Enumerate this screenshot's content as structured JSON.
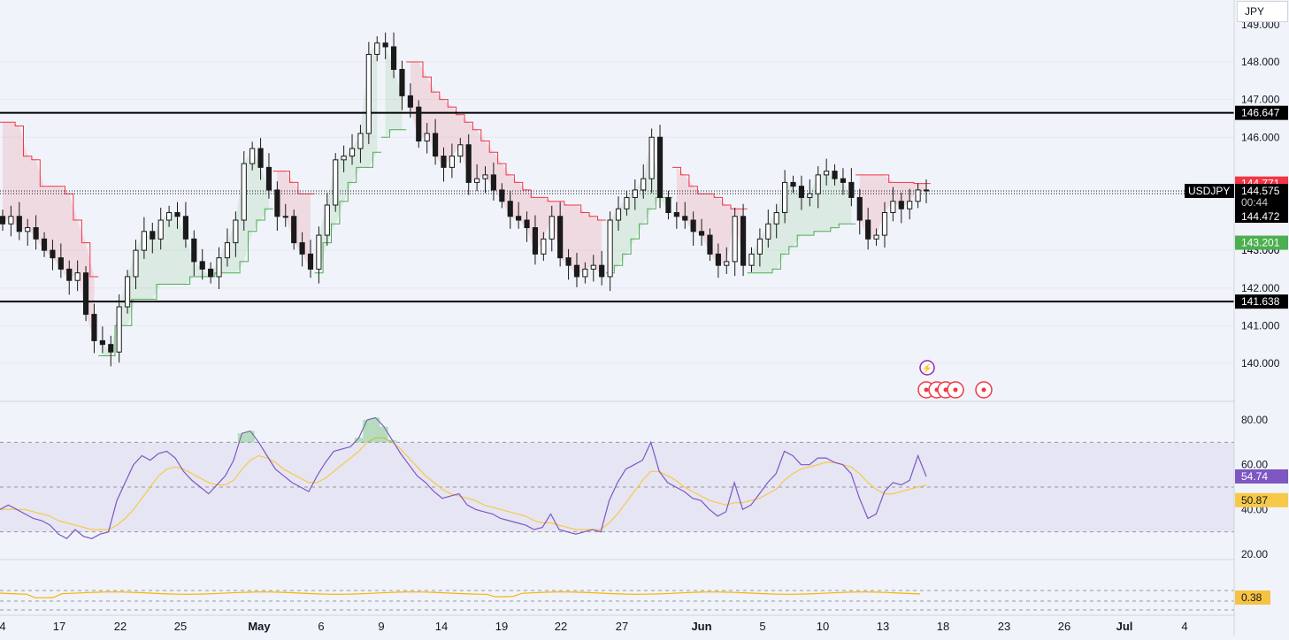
{
  "currency": "JPY",
  "colors": {
    "background": "#f0f3fa",
    "up_candle": "#1a1a1a",
    "down_candle": "#1a1a1a",
    "supertrend_down": "#f23645",
    "supertrend_up": "#4caf50",
    "rsi_line": "#7e57c2",
    "rsi_ma": "#f7c948",
    "rsi_band": "#e1def0",
    "osc_line": "#f5b301",
    "axis_text": "#131722"
  },
  "chart_data": [
    {
      "type": "candlestick",
      "symbol": "USDJPY",
      "y_range": [
        139.7,
        149.4
      ],
      "y_ticks": [
        "140.000",
        "141.000",
        "142.000",
        "143.000",
        "146.000",
        "147.000",
        "148.000"
      ],
      "x_labels": [
        "4",
        "17",
        "22",
        "25",
        "May",
        "6",
        "9",
        "14",
        "19",
        "22",
        "27",
        "Jun",
        "5",
        "10",
        "13",
        "18",
        "23",
        "26",
        "Jul",
        "4"
      ],
      "horizontal_levels": [
        {
          "price": 146.647,
          "label": "146.647"
        },
        {
          "price": 141.638,
          "label": "141.638"
        }
      ],
      "price_labels": {
        "symbol_label": "USDJPY",
        "last": "144.575",
        "countdown": "00:44",
        "prev": "144.472",
        "supertrend_down": "144.771",
        "supertrend_up": "143.201"
      },
      "closes": [
        143.7,
        143.9,
        143.5,
        143.6,
        143.3,
        143.0,
        142.8,
        142.5,
        142.2,
        142.4,
        141.3,
        140.6,
        140.5,
        140.3,
        141.5,
        142.3,
        143.0,
        143.5,
        143.3,
        143.8,
        144.0,
        143.9,
        143.3,
        142.7,
        142.5,
        142.3,
        142.8,
        143.2,
        143.8,
        145.3,
        145.7,
        145.2,
        144.6,
        143.9,
        143.9,
        143.2,
        142.9,
        142.5,
        143.4,
        144.2,
        145.4,
        145.5,
        145.7,
        146.1,
        148.2,
        148.5,
        148.4,
        147.8,
        147.1,
        146.8,
        145.9,
        146.1,
        145.5,
        145.2,
        145.5,
        145.8,
        144.8,
        144.9,
        145.0,
        144.6,
        144.3,
        143.9,
        143.8,
        143.6,
        142.9,
        143.3,
        143.9,
        142.8,
        142.6,
        142.3,
        142.5,
        142.6,
        142.3,
        143.8,
        144.1,
        144.4,
        144.6,
        144.9,
        146.0,
        144.4,
        144.0,
        143.9,
        143.8,
        143.5,
        143.4,
        142.9,
        142.6,
        142.7,
        143.9,
        142.6,
        142.9,
        143.3,
        143.7,
        144.0,
        144.8,
        144.7,
        144.4,
        144.5,
        145.0,
        145.1,
        144.9,
        144.8,
        144.4,
        143.8,
        143.3,
        143.4,
        144.0,
        144.3,
        144.1,
        144.3,
        144.6,
        144.575
      ],
      "supertrend": [
        {
          "dir": "down",
          "from": 0,
          "to": 11,
          "values": [
            146.4,
            146.4,
            146.3,
            145.5,
            145.4,
            144.7,
            144.7,
            144.7,
            144.5,
            143.8,
            143.2,
            142.3
          ]
        },
        {
          "dir": "up",
          "from": 12,
          "to": 32,
          "values": [
            140.2,
            140.2,
            141.0,
            141.0,
            141.7,
            141.7,
            141.7,
            142.1,
            142.1,
            142.1,
            142.1,
            142.3,
            142.3,
            142.3,
            142.4,
            142.4,
            142.4,
            142.7,
            143.5,
            143.8,
            144.1
          ]
        },
        {
          "dir": "down",
          "from": 33,
          "to": 37,
          "values": [
            145.1,
            145.1,
            144.8,
            144.5,
            144.5
          ]
        },
        {
          "dir": "up",
          "from": 38,
          "to": 45,
          "values": [
            142.4,
            143.2,
            143.7,
            144.3,
            144.8,
            145.2,
            145.2,
            145.6
          ]
        },
        {
          "dir": "up",
          "from": 46,
          "to": 48,
          "values": [
            146.0,
            146.2,
            146.2
          ]
        },
        {
          "dir": "down",
          "from": 49,
          "to": 72,
          "values": [
            148.0,
            148.0,
            147.6,
            147.2,
            147.0,
            146.8,
            146.6,
            146.4,
            146.2,
            145.9,
            145.6,
            145.3,
            145.0,
            144.8,
            144.6,
            144.4,
            144.4,
            144.3,
            144.3,
            144.2,
            144.2,
            144.0,
            143.9,
            143.8
          ]
        },
        {
          "dir": "up",
          "from": 73,
          "to": 80,
          "values": [
            142.4,
            142.6,
            142.9,
            143.3,
            143.7,
            144.1,
            144.4,
            144.4
          ]
        },
        {
          "dir": "down",
          "from": 81,
          "to": 89,
          "values": [
            145.2,
            145.0,
            144.7,
            144.5,
            144.5,
            144.4,
            144.2,
            144.1,
            144.1
          ]
        },
        {
          "dir": "up",
          "from": 90,
          "to": 102,
          "values": [
            142.4,
            142.4,
            142.4,
            142.5,
            142.9,
            143.1,
            143.4,
            143.4,
            143.5,
            143.5,
            143.6,
            143.7,
            143.7
          ]
        },
        {
          "dir": "down",
          "from": 103,
          "to": 111,
          "values": [
            145.0,
            145.0,
            145.0,
            145.0,
            144.8,
            144.8,
            144.8,
            144.771,
            144.771
          ]
        }
      ]
    },
    {
      "type": "line",
      "name": "RSI",
      "y_range": [
        12,
        88
      ],
      "y_ticks": [
        "20.00",
        "40.00",
        "60.00",
        "80.00"
      ],
      "bands": [
        30,
        50,
        70
      ],
      "value_labels": {
        "rsi": "54.74",
        "ma": "50.87"
      },
      "rsi": [
        40,
        42,
        40,
        38,
        36,
        35,
        33,
        29,
        27,
        31,
        28,
        27,
        29,
        30,
        44,
        52,
        60,
        64,
        62,
        65,
        66,
        63,
        57,
        53,
        50,
        47,
        51,
        55,
        62,
        74,
        75,
        70,
        64,
        58,
        55,
        52,
        50,
        48,
        55,
        61,
        66,
        67,
        68,
        72,
        80,
        81,
        77,
        71,
        65,
        60,
        55,
        52,
        48,
        45,
        46,
        47,
        42,
        40,
        39,
        38,
        36,
        35,
        34,
        33,
        31,
        32,
        38,
        31,
        30,
        29,
        30,
        31,
        30,
        44,
        52,
        58,
        60,
        62,
        70,
        57,
        52,
        50,
        48,
        45,
        44,
        40,
        37,
        39,
        52,
        40,
        42,
        47,
        52,
        56,
        66,
        64,
        60,
        60,
        63,
        63,
        61,
        60,
        56,
        45,
        36,
        38,
        48,
        52,
        51,
        53,
        64,
        54.74
      ],
      "ma": [
        40,
        40,
        40,
        40,
        39,
        38,
        37,
        35,
        34,
        33,
        32,
        31,
        31,
        31,
        33,
        36,
        40,
        45,
        50,
        55,
        58,
        59,
        58,
        56,
        54,
        52,
        51,
        51,
        53,
        58,
        62,
        64,
        63,
        61,
        58,
        56,
        54,
        52,
        52,
        54,
        57,
        60,
        63,
        66,
        70,
        72,
        72,
        70,
        67,
        63,
        59,
        55,
        52,
        49,
        47,
        46,
        45,
        44,
        42,
        41,
        40,
        39,
        38,
        37,
        35,
        34,
        34,
        33,
        32,
        31,
        31,
        31,
        31,
        34,
        38,
        43,
        48,
        53,
        57,
        57,
        55,
        53,
        50,
        48,
        46,
        44,
        43,
        42,
        43,
        43,
        44,
        45,
        47,
        49,
        53,
        56,
        58,
        59,
        60,
        61,
        61,
        60,
        59,
        56,
        52,
        49,
        47,
        47,
        48,
        49,
        50,
        50.87
      ]
    },
    {
      "type": "line",
      "name": "Oscillator",
      "value_label": "0.38",
      "y_range": [
        -1,
        1
      ]
    }
  ],
  "markers": {
    "lightning": "⚡",
    "event_icons": 5
  }
}
